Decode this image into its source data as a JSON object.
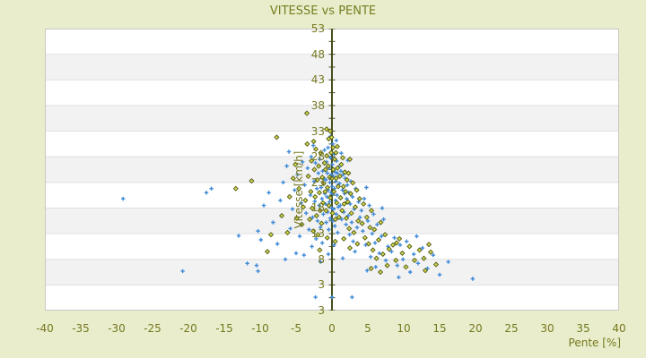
{
  "title": "VITESSE vs PENTE",
  "colors": {
    "background": "#e9edcb",
    "plot_background": "#ffffff",
    "band": "#f2f2f2",
    "gridline": "#e0e0e0",
    "plot_border": "#c9c9c9",
    "axis_line": "#454f1d",
    "label_text": "#75781f",
    "series_blue": "#3d89d8",
    "series_olive_stroke": "#5c6420",
    "series_olive_fill": "#d6dc4c"
  },
  "x_axis": {
    "label": "Pente [%]",
    "tick_labels": [
      "-40",
      "-35",
      "-30",
      "-25",
      "-20",
      "-15",
      "-10",
      "-5",
      "0",
      "5",
      "10",
      "15",
      "20",
      "25",
      "30",
      "35",
      "40"
    ]
  },
  "y_axis": {
    "label": "Vitesse [km/h]",
    "tick_labels": [
      "53",
      "48",
      "43",
      "38",
      "33",
      "28",
      "23",
      "18",
      "13",
      "8",
      "3"
    ],
    "bottom_label": "3",
    "tick_step": 5,
    "minor_tick_step": 2.5
  },
  "chart_data": {
    "type": "scatter",
    "title": "VITESSE vs PENTE",
    "xlabel": "Pente [%]",
    "ylabel": "Vitesse [km/h]",
    "xlim": [
      -40,
      40
    ],
    "ylim": [
      -2,
      53
    ],
    "grid": "horizontal-bands",
    "legend": "none",
    "series": [
      {
        "name": "vitesse-blue",
        "marker": "plus",
        "color": "#3d89d8",
        "points": [
          [
            -29.1,
            19.8
          ],
          [
            -20.8,
            5.7
          ],
          [
            -17.5,
            21
          ],
          [
            -16.8,
            21.8
          ],
          [
            -13,
            12.6
          ],
          [
            -11.8,
            7.2
          ],
          [
            -10.5,
            6.8
          ],
          [
            -10.3,
            13.5
          ],
          [
            -10.3,
            5.7
          ],
          [
            -9.9,
            11.8
          ],
          [
            -9.5,
            18.5
          ],
          [
            -8.8,
            21
          ],
          [
            -8.2,
            15.2
          ],
          [
            -7.6,
            11
          ],
          [
            -7.2,
            19.5
          ],
          [
            -6.8,
            23
          ],
          [
            -6.5,
            8
          ],
          [
            -6.3,
            26.2
          ],
          [
            -6,
            29
          ],
          [
            -5.8,
            14
          ],
          [
            -5.5,
            17.8
          ],
          [
            -5.2,
            21.5
          ],
          [
            -5,
            9.2
          ],
          [
            -4.8,
            24.5
          ],
          [
            -4.5,
            12.5
          ],
          [
            -4.3,
            19
          ],
          [
            -4.1,
            27
          ],
          [
            -3.9,
            8.8
          ],
          [
            -3.8,
            22.5
          ],
          [
            -3.6,
            17
          ],
          [
            -3.4,
            25.8
          ],
          [
            -3.2,
            13.8
          ],
          [
            -3,
            20.5
          ],
          [
            -2.9,
            28
          ],
          [
            -2.8,
            10.5
          ],
          [
            -2.7,
            16.2
          ],
          [
            -2.6,
            30.2
          ],
          [
            -2.5,
            23.2
          ],
          [
            -2.4,
            19.3
          ],
          [
            -2.3,
            26.8
          ],
          [
            -2.3,
            0.6
          ],
          [
            -2.2,
            12
          ],
          [
            -2.1,
            21.8
          ],
          [
            -2,
            15.5
          ],
          [
            -1.9,
            24.8
          ],
          [
            -1.8,
            18.5
          ],
          [
            -1.7,
            27.5
          ],
          [
            -1.6,
            14.2
          ],
          [
            -1.6,
            7.5
          ],
          [
            -1.5,
            22
          ],
          [
            -1.4,
            19.8
          ],
          [
            -1.35,
            11.2
          ],
          [
            -1.3,
            25.2
          ],
          [
            -1.2,
            16.8
          ],
          [
            -1.1,
            23.8
          ],
          [
            -1.05,
            29.3
          ],
          [
            -1,
            20.8
          ],
          [
            -0.9,
            18.8
          ],
          [
            -0.85,
            23.5
          ],
          [
            -0.8,
            15.2
          ],
          [
            -0.75,
            27
          ],
          [
            -0.7,
            20.2
          ],
          [
            -0.65,
            24.8
          ],
          [
            -0.6,
            17.2
          ],
          [
            -0.55,
            29.8
          ],
          [
            -0.5,
            21.5
          ],
          [
            -0.5,
            9
          ],
          [
            -0.45,
            13.8
          ],
          [
            -0.4,
            25.8
          ],
          [
            -0.35,
            19.2
          ],
          [
            -0.3,
            23
          ],
          [
            -0.25,
            16
          ],
          [
            -0.2,
            32
          ],
          [
            -0.2,
            27.8
          ],
          [
            -0.15,
            21
          ],
          [
            -0.1,
            24.5
          ],
          [
            -0.05,
            18
          ],
          [
            0,
            22.2
          ],
          [
            0,
            0.6
          ],
          [
            0.05,
            26.5
          ],
          [
            0.1,
            30.5
          ],
          [
            0.1,
            15.5
          ],
          [
            0.15,
            20.8
          ],
          [
            0.2,
            24.2
          ],
          [
            0.25,
            17.8
          ],
          [
            0.3,
            28.5
          ],
          [
            0.3,
            10.8
          ],
          [
            0.35,
            21.8
          ],
          [
            0.4,
            14.5
          ],
          [
            0.45,
            25
          ],
          [
            0.5,
            19.5
          ],
          [
            0.55,
            23.2
          ],
          [
            0.6,
            31.2
          ],
          [
            0.6,
            16.8
          ],
          [
            0.65,
            27.2
          ],
          [
            0.7,
            20.5
          ],
          [
            0.75,
            24.8
          ],
          [
            0.8,
            13.2
          ],
          [
            0.85,
            22.5
          ],
          [
            0.9,
            18.2
          ],
          [
            0.95,
            26
          ],
          [
            1.05,
            22.8
          ],
          [
            1.15,
            18.5
          ],
          [
            1.25,
            25.2
          ],
          [
            1.3,
            28.7
          ],
          [
            1.35,
            15.8
          ],
          [
            1.45,
            21.5
          ],
          [
            1.5,
            8.2
          ],
          [
            1.55,
            24.5
          ],
          [
            1.65,
            17.2
          ],
          [
            1.75,
            20.8
          ],
          [
            1.85,
            23.8
          ],
          [
            1.95,
            14.8
          ],
          [
            2.05,
            19.8
          ],
          [
            2.15,
            22.5
          ],
          [
            2.2,
            27.3
          ],
          [
            2.25,
            16.5
          ],
          [
            2.35,
            21
          ],
          [
            2.45,
            12.8
          ],
          [
            2.55,
            18.8
          ],
          [
            2.65,
            23.2
          ],
          [
            2.75,
            15.2
          ],
          [
            2.8,
            0.6
          ],
          [
            2.85,
            20.2
          ],
          [
            2.95,
            11.5
          ],
          [
            3.1,
            17.8
          ],
          [
            3.2,
            9.5
          ],
          [
            3.3,
            21.8
          ],
          [
            3.5,
            14.2
          ],
          [
            3.7,
            19.2
          ],
          [
            3.9,
            16.2
          ],
          [
            4.1,
            17.5
          ],
          [
            4.3,
            13.5
          ],
          [
            4.5,
            19.8
          ],
          [
            4.7,
            10.8
          ],
          [
            4.8,
            22
          ],
          [
            4.9,
            5.8
          ],
          [
            5,
            15.5
          ],
          [
            5.2,
            18.5
          ],
          [
            5.4,
            8.5
          ],
          [
            5.6,
            13
          ],
          [
            5.8,
            16.8
          ],
          [
            6,
            11.2
          ],
          [
            6.1,
            6.5
          ],
          [
            6.3,
            14.8
          ],
          [
            6.6,
            9.2
          ],
          [
            6.9,
            12.5
          ],
          [
            7,
            18
          ],
          [
            7.2,
            15.8
          ],
          [
            7.5,
            7.8
          ],
          [
            7.8,
            10.5
          ],
          [
            8.3,
            9.5
          ],
          [
            8.7,
            12.2
          ],
          [
            9.1,
            6.8
          ],
          [
            9.3,
            4.5
          ],
          [
            9.5,
            10.8
          ],
          [
            9.9,
            8
          ],
          [
            10.4,
            11.5
          ],
          [
            10.9,
            5.5
          ],
          [
            11.4,
            9
          ],
          [
            11.8,
            12.5
          ],
          [
            12,
            7.2
          ],
          [
            12.6,
            10.2
          ],
          [
            13.3,
            6.2
          ],
          [
            14.1,
            8.8
          ],
          [
            15,
            5
          ],
          [
            16.2,
            7.5
          ],
          [
            19.6,
            4.2
          ]
        ]
      },
      {
        "name": "vitesse-olive",
        "marker": "diamond",
        "color": "#5c6420",
        "fill": "#d6dc4c",
        "points": [
          [
            -13.4,
            21.8
          ],
          [
            -11.2,
            23.3
          ],
          [
            -9,
            9.5
          ],
          [
            -8.5,
            12.8
          ],
          [
            -7.7,
            31.8
          ],
          [
            -7,
            16.5
          ],
          [
            -6.2,
            13.2
          ],
          [
            -5.9,
            20.2
          ],
          [
            -5.4,
            23.8
          ],
          [
            -5.1,
            26.5
          ],
          [
            -4.9,
            16
          ],
          [
            -4.6,
            21.8
          ],
          [
            -4.2,
            14.8
          ],
          [
            -4,
            18.2
          ],
          [
            -3.7,
            19.5
          ],
          [
            -3.5,
            36.5
          ],
          [
            -3.45,
            30.5
          ],
          [
            -3.3,
            24.2
          ],
          [
            -3.1,
            15.8
          ],
          [
            -2.95,
            21.2
          ],
          [
            -2.85,
            27.2
          ],
          [
            -2.75,
            18
          ],
          [
            -2.6,
            13.5
          ],
          [
            -2.55,
            31
          ],
          [
            -2.45,
            25.5
          ],
          [
            -2.35,
            20.2
          ],
          [
            -2.25,
            29.5
          ],
          [
            -2.15,
            16.5
          ],
          [
            -2.05,
            23.5
          ],
          [
            -1.95,
            12.8
          ],
          [
            -1.85,
            26.2
          ],
          [
            -1.75,
            21
          ],
          [
            -1.7,
            9.8
          ],
          [
            -1.65,
            17.5
          ],
          [
            -1.55,
            28.8
          ],
          [
            -1.45,
            15
          ],
          [
            -1.35,
            24
          ],
          [
            -1.25,
            19
          ],
          [
            -1.15,
            22.8
          ],
          [
            -1.05,
            26.8
          ],
          [
            -0.95,
            21.2
          ],
          [
            -0.9,
            25.5
          ],
          [
            -0.82,
            17.5
          ],
          [
            -0.75,
            33.4
          ],
          [
            -0.72,
            28.2
          ],
          [
            -0.65,
            12.2
          ],
          [
            -0.62,
            22
          ],
          [
            -0.52,
            26.2
          ],
          [
            -0.45,
            31.5
          ],
          [
            -0.42,
            18.5
          ],
          [
            -0.32,
            24
          ],
          [
            -0.25,
            33
          ],
          [
            -0.22,
            20
          ],
          [
            -0.12,
            28.8
          ],
          [
            -0.05,
            31.8
          ],
          [
            -0.02,
            23.8
          ],
          [
            0.08,
            17
          ],
          [
            0.15,
            29.8
          ],
          [
            0.18,
            25.5
          ],
          [
            0.28,
            21.2
          ],
          [
            0.38,
            27.5
          ],
          [
            0.45,
            11.5
          ],
          [
            0.48,
            15.8
          ],
          [
            0.55,
            28.8
          ],
          [
            0.58,
            23.8
          ],
          [
            0.68,
            19
          ],
          [
            0.75,
            30
          ],
          [
            0.78,
            25.8
          ],
          [
            0.88,
            22.2
          ],
          [
            0.98,
            16.2
          ],
          [
            1.1,
            24.2
          ],
          [
            1.2,
            20
          ],
          [
            1.3,
            26.5
          ],
          [
            1.4,
            17.5
          ],
          [
            1.5,
            27.8
          ],
          [
            1.6,
            22.2
          ],
          [
            1.65,
            12
          ],
          [
            1.7,
            18.8
          ],
          [
            1.8,
            25
          ],
          [
            1.9,
            21.2
          ],
          [
            2,
            16
          ],
          [
            2.1,
            23.5
          ],
          [
            2.2,
            19.2
          ],
          [
            2.3,
            24.8
          ],
          [
            2.4,
            14
          ],
          [
            2.5,
            27.5
          ],
          [
            2.5,
            10.2
          ],
          [
            2.6,
            20.8
          ],
          [
            2.7,
            17
          ],
          [
            2.9,
            22.9
          ],
          [
            3.05,
            13.2
          ],
          [
            3.25,
            18.2
          ],
          [
            3.45,
            21.5
          ],
          [
            3.55,
            11
          ],
          [
            3.65,
            15.5
          ],
          [
            3.85,
            19.8
          ],
          [
            4.2,
            15
          ],
          [
            4.4,
            18.8
          ],
          [
            4.6,
            12.2
          ],
          [
            4.85,
            16.2
          ],
          [
            5.1,
            11
          ],
          [
            5.3,
            14.2
          ],
          [
            5.45,
            6.2
          ],
          [
            5.5,
            17.5
          ],
          [
            5.7,
            9.8
          ],
          [
            5.9,
            13.8
          ],
          [
            6.2,
            8.2
          ],
          [
            6.5,
            11.8
          ],
          [
            6.75,
            5.5
          ],
          [
            6.8,
            15.2
          ],
          [
            7.1,
            9
          ],
          [
            7.4,
            12.8
          ],
          [
            7.7,
            6.8
          ],
          [
            7.95,
            10
          ],
          [
            8.5,
            10.8
          ],
          [
            8.9,
            7.8
          ],
          [
            9,
            11.2
          ],
          [
            9.4,
            12
          ],
          [
            9.8,
            9.2
          ],
          [
            10.3,
            6.5
          ],
          [
            10.8,
            10.5
          ],
          [
            11.5,
            7.8
          ],
          [
            12.2,
            9.8
          ],
          [
            12.8,
            8.2
          ],
          [
            13,
            5.8
          ],
          [
            13.5,
            10.9
          ],
          [
            13.75,
            9.4
          ],
          [
            14.5,
            7
          ]
        ]
      }
    ]
  }
}
